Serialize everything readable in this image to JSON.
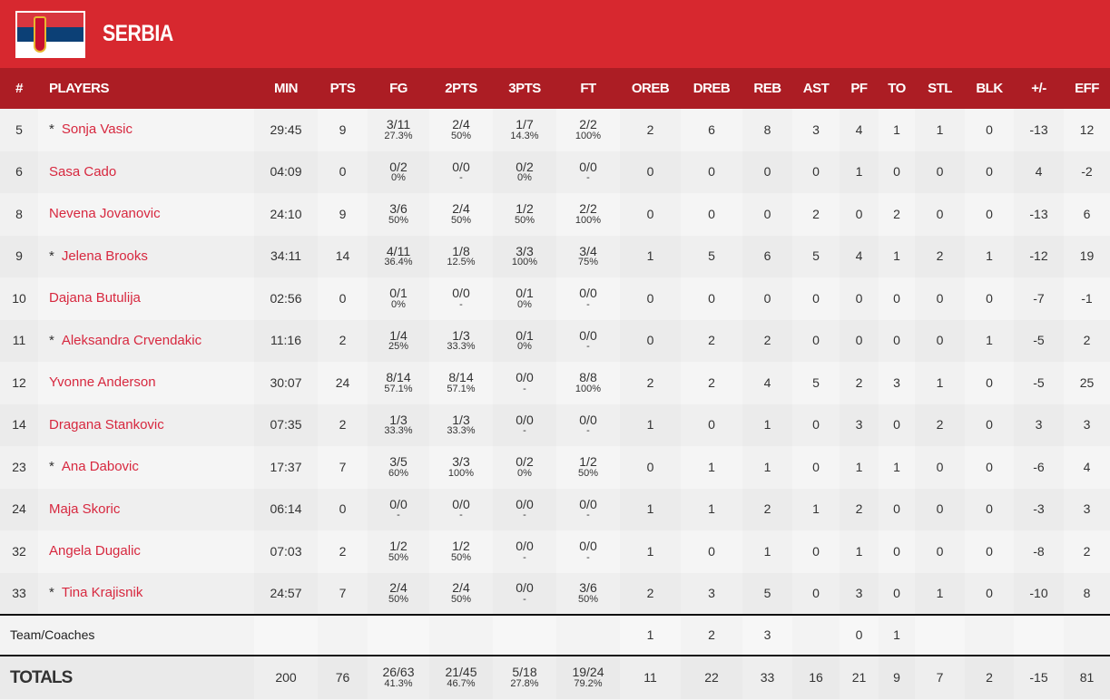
{
  "team": {
    "name": "SERBIA",
    "flag_colors": [
      "#d8363f",
      "#0c4076",
      "#ffffff"
    ]
  },
  "accent": "#d7282f",
  "columns": [
    "#",
    "PLAYERS",
    "MIN",
    "PTS",
    "FG",
    "2PTS",
    "3PTS",
    "FT",
    "OREB",
    "DREB",
    "REB",
    "AST",
    "PF",
    "TO",
    "STL",
    "BLK",
    "+/-",
    "EFF"
  ],
  "players": [
    {
      "no": "5",
      "starter": "*",
      "name": "Sonja Vasic",
      "min": "29:45",
      "pts": "9",
      "fg": "3/11",
      "fgp": "27.3%",
      "p2": "2/4",
      "p2p": "50%",
      "p3": "1/7",
      "p3p": "14.3%",
      "ft": "2/2",
      "ftp": "100%",
      "oreb": "2",
      "dreb": "6",
      "reb": "8",
      "ast": "3",
      "pf": "4",
      "to": "1",
      "stl": "1",
      "blk": "0",
      "pm": "-13",
      "eff": "12"
    },
    {
      "no": "6",
      "starter": "",
      "name": "Sasa Cado",
      "min": "04:09",
      "pts": "0",
      "fg": "0/2",
      "fgp": "0%",
      "p2": "0/0",
      "p2p": "-",
      "p3": "0/2",
      "p3p": "0%",
      "ft": "0/0",
      "ftp": "-",
      "oreb": "0",
      "dreb": "0",
      "reb": "0",
      "ast": "0",
      "pf": "1",
      "to": "0",
      "stl": "0",
      "blk": "0",
      "pm": "4",
      "eff": "-2"
    },
    {
      "no": "8",
      "starter": "",
      "name": "Nevena Jovanovic",
      "min": "24:10",
      "pts": "9",
      "fg": "3/6",
      "fgp": "50%",
      "p2": "2/4",
      "p2p": "50%",
      "p3": "1/2",
      "p3p": "50%",
      "ft": "2/2",
      "ftp": "100%",
      "oreb": "0",
      "dreb": "0",
      "reb": "0",
      "ast": "2",
      "pf": "0",
      "to": "2",
      "stl": "0",
      "blk": "0",
      "pm": "-13",
      "eff": "6"
    },
    {
      "no": "9",
      "starter": "*",
      "name": "Jelena Brooks",
      "min": "34:11",
      "pts": "14",
      "fg": "4/11",
      "fgp": "36.4%",
      "p2": "1/8",
      "p2p": "12.5%",
      "p3": "3/3",
      "p3p": "100%",
      "ft": "3/4",
      "ftp": "75%",
      "oreb": "1",
      "dreb": "5",
      "reb": "6",
      "ast": "5",
      "pf": "4",
      "to": "1",
      "stl": "2",
      "blk": "1",
      "pm": "-12",
      "eff": "19"
    },
    {
      "no": "10",
      "starter": "",
      "name": "Dajana Butulija",
      "min": "02:56",
      "pts": "0",
      "fg": "0/1",
      "fgp": "0%",
      "p2": "0/0",
      "p2p": "-",
      "p3": "0/1",
      "p3p": "0%",
      "ft": "0/0",
      "ftp": "-",
      "oreb": "0",
      "dreb": "0",
      "reb": "0",
      "ast": "0",
      "pf": "0",
      "to": "0",
      "stl": "0",
      "blk": "0",
      "pm": "-7",
      "eff": "-1"
    },
    {
      "no": "11",
      "starter": "*",
      "name": "Aleksandra Crvendakic",
      "min": "11:16",
      "pts": "2",
      "fg": "1/4",
      "fgp": "25%",
      "p2": "1/3",
      "p2p": "33.3%",
      "p3": "0/1",
      "p3p": "0%",
      "ft": "0/0",
      "ftp": "-",
      "oreb": "0",
      "dreb": "2",
      "reb": "2",
      "ast": "0",
      "pf": "0",
      "to": "0",
      "stl": "0",
      "blk": "1",
      "pm": "-5",
      "eff": "2"
    },
    {
      "no": "12",
      "starter": "",
      "name": "Yvonne Anderson",
      "min": "30:07",
      "pts": "24",
      "fg": "8/14",
      "fgp": "57.1%",
      "p2": "8/14",
      "p2p": "57.1%",
      "p3": "0/0",
      "p3p": "-",
      "ft": "8/8",
      "ftp": "100%",
      "oreb": "2",
      "dreb": "2",
      "reb": "4",
      "ast": "5",
      "pf": "2",
      "to": "3",
      "stl": "1",
      "blk": "0",
      "pm": "-5",
      "eff": "25"
    },
    {
      "no": "14",
      "starter": "",
      "name": "Dragana Stankovic",
      "min": "07:35",
      "pts": "2",
      "fg": "1/3",
      "fgp": "33.3%",
      "p2": "1/3",
      "p2p": "33.3%",
      "p3": "0/0",
      "p3p": "-",
      "ft": "0/0",
      "ftp": "-",
      "oreb": "1",
      "dreb": "0",
      "reb": "1",
      "ast": "0",
      "pf": "3",
      "to": "0",
      "stl": "2",
      "blk": "0",
      "pm": "3",
      "eff": "3"
    },
    {
      "no": "23",
      "starter": "*",
      "name": "Ana Dabovic",
      "min": "17:37",
      "pts": "7",
      "fg": "3/5",
      "fgp": "60%",
      "p2": "3/3",
      "p2p": "100%",
      "p3": "0/2",
      "p3p": "0%",
      "ft": "1/2",
      "ftp": "50%",
      "oreb": "0",
      "dreb": "1",
      "reb": "1",
      "ast": "0",
      "pf": "1",
      "to": "1",
      "stl": "0",
      "blk": "0",
      "pm": "-6",
      "eff": "4"
    },
    {
      "no": "24",
      "starter": "",
      "name": "Maja Skoric",
      "min": "06:14",
      "pts": "0",
      "fg": "0/0",
      "fgp": "-",
      "p2": "0/0",
      "p2p": "-",
      "p3": "0/0",
      "p3p": "-",
      "ft": "0/0",
      "ftp": "-",
      "oreb": "1",
      "dreb": "1",
      "reb": "2",
      "ast": "1",
      "pf": "2",
      "to": "0",
      "stl": "0",
      "blk": "0",
      "pm": "-3",
      "eff": "3"
    },
    {
      "no": "32",
      "starter": "",
      "name": "Angela Dugalic",
      "min": "07:03",
      "pts": "2",
      "fg": "1/2",
      "fgp": "50%",
      "p2": "1/2",
      "p2p": "50%",
      "p3": "0/0",
      "p3p": "-",
      "ft": "0/0",
      "ftp": "-",
      "oreb": "1",
      "dreb": "0",
      "reb": "1",
      "ast": "0",
      "pf": "1",
      "to": "0",
      "stl": "0",
      "blk": "0",
      "pm": "-8",
      "eff": "2"
    },
    {
      "no": "33",
      "starter": "*",
      "name": "Tina Krajisnik",
      "min": "24:57",
      "pts": "7",
      "fg": "2/4",
      "fgp": "50%",
      "p2": "2/4",
      "p2p": "50%",
      "p3": "0/0",
      "p3p": "-",
      "ft": "3/6",
      "ftp": "50%",
      "oreb": "2",
      "dreb": "3",
      "reb": "5",
      "ast": "0",
      "pf": "3",
      "to": "0",
      "stl": "1",
      "blk": "0",
      "pm": "-10",
      "eff": "8"
    }
  ],
  "team_row": {
    "label": "Team/Coaches",
    "oreb": "1",
    "dreb": "2",
    "reb": "3",
    "pf": "0",
    "to": "1"
  },
  "totals": {
    "label": "TOTALS",
    "min": "200",
    "pts": "76",
    "fg": "26/63",
    "fgp": "41.3%",
    "p2": "21/45",
    "p2p": "46.7%",
    "p3": "5/18",
    "p3p": "27.8%",
    "ft": "19/24",
    "ftp": "79.2%",
    "oreb": "11",
    "dreb": "22",
    "reb": "33",
    "ast": "16",
    "pf": "21",
    "to": "9",
    "stl": "7",
    "blk": "2",
    "pm": "-15",
    "eff": "81"
  }
}
